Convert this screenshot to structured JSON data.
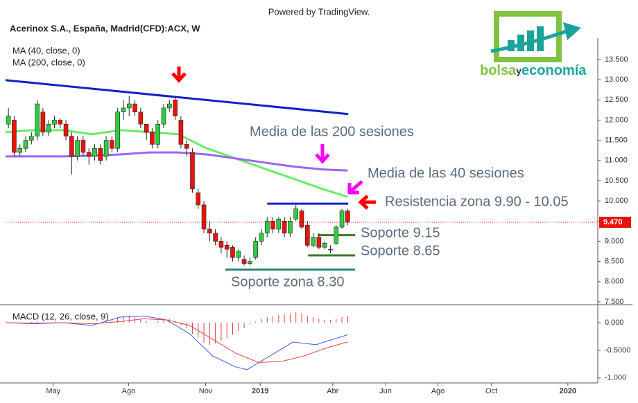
{
  "chart_data": {
    "type": "candlestick",
    "watermark": "Powered by TradingView.",
    "title": "Acerinox S.A., España, Madrid(CFD):ACX, W",
    "indicator_labels": [
      "MA (40, close, 0)",
      "MA (200, close, 0)"
    ],
    "logo": {
      "part1": "bolsa",
      "part2": "y",
      "part3": "economía"
    },
    "xlim": [
      0,
      103
    ],
    "xticks": [
      {
        "value": 8.3,
        "label": "May"
      },
      {
        "value": 21.4,
        "label": "Ago"
      },
      {
        "value": 34.8,
        "label": "Nov"
      },
      {
        "value": 44.3,
        "label": "2019"
      },
      {
        "value": 56.9,
        "label": "Abr"
      },
      {
        "value": 66.1,
        "label": "Jun"
      },
      {
        "value": 75.2,
        "label": "Ago"
      },
      {
        "value": 84.5,
        "label": "Oct"
      },
      {
        "value": 97.8,
        "label": "2020"
      }
    ],
    "ylim": [
      7.43,
      14.03
    ],
    "yticks": [
      {
        "value": 7.5,
        "label": "7.500"
      },
      {
        "value": 8,
        "label": "8.000"
      },
      {
        "value": 8.5,
        "label": "8.500"
      },
      {
        "value": 9,
        "label": "9.000"
      },
      {
        "value": 9.5,
        "label": "9.500"
      },
      {
        "value": 10,
        "label": "10.000"
      },
      {
        "value": 10.5,
        "label": "10.500"
      },
      {
        "value": 11,
        "label": "11.000"
      },
      {
        "value": 11.5,
        "label": "11.500"
      },
      {
        "value": 12,
        "label": "12.000"
      },
      {
        "value": 12.5,
        "label": "12.500"
      },
      {
        "value": 13,
        "label": "13.000"
      },
      {
        "value": 13.5,
        "label": "13.500"
      }
    ],
    "up_color": "#2ecc40",
    "down_color": "#e8140c",
    "x": [
      0.5,
      1.5,
      2.5,
      3.5,
      4.5,
      5.5,
      6.5,
      7.5,
      8.5,
      9.5,
      10.5,
      11.5,
      12.5,
      13.5,
      14.5,
      15.5,
      16.5,
      17.5,
      18.5,
      19.5,
      20.5,
      21.5,
      22.5,
      23.5,
      24.5,
      25.5,
      26.5,
      27.5,
      28.5,
      29.5,
      30.5,
      31.5,
      32.5,
      33.5,
      34.5,
      35.5,
      36.5,
      37.5,
      38.5,
      39.5,
      40.5,
      41.5,
      42.5,
      43.5,
      44.5,
      45.5,
      46.5,
      47.5,
      48.5,
      49.5,
      50.5,
      51.5,
      52.5,
      53.5,
      54.5,
      55.5,
      56.5,
      57.5,
      58.5,
      59.5
    ],
    "open": [
      11.9,
      12.0,
      11.2,
      11.3,
      11.5,
      11.6,
      12.2,
      11.7,
      11.9,
      12.0,
      11.9,
      11.6,
      11.1,
      11.5,
      11.2,
      11.1,
      11.3,
      11.1,
      11.5,
      11.3,
      12.2,
      12.3,
      12.4,
      12.2,
      11.9,
      11.7,
      11.4,
      11.9,
      12.3,
      12.5,
      12.0,
      11.4,
      11.2,
      10.2,
      9.9,
      9.3,
      9.2,
      9.0,
      8.9,
      8.85,
      8.6,
      8.55,
      8.45,
      8.6,
      9.0,
      9.2,
      9.5,
      9.3,
      9.5,
      9.2,
      9.55,
      9.75,
      9.4,
      8.9,
      9.1,
      8.85,
      8.8,
      8.95,
      9.35,
      9.75
    ],
    "high": [
      12.3,
      12.1,
      11.4,
      11.6,
      11.7,
      12.5,
      12.3,
      12.0,
      12.1,
      12.05,
      12.0,
      11.7,
      11.6,
      11.6,
      11.3,
      11.4,
      11.4,
      11.6,
      11.6,
      12.3,
      12.5,
      12.6,
      12.5,
      12.3,
      11.9,
      11.8,
      12.0,
      12.4,
      12.5,
      12.6,
      12.1,
      11.5,
      11.3,
      10.3,
      10.0,
      9.5,
      9.3,
      9.1,
      9.0,
      8.9,
      8.8,
      8.65,
      8.6,
      9.1,
      9.3,
      9.6,
      9.6,
      9.6,
      9.6,
      9.6,
      9.9,
      9.8,
      9.5,
      9.2,
      9.2,
      9.0,
      8.9,
      9.4,
      9.8,
      9.8
    ],
    "low": [
      11.8,
      11.1,
      11.1,
      11.2,
      11.4,
      11.5,
      11.6,
      11.6,
      11.8,
      11.8,
      11.5,
      10.65,
      11.0,
      11.1,
      10.9,
      11.0,
      10.9,
      11.0,
      11.2,
      11.2,
      12.0,
      12.1,
      12.1,
      11.8,
      11.5,
      11.3,
      11.3,
      11.8,
      12.2,
      12.0,
      11.3,
      11.1,
      10.2,
      9.8,
      9.2,
      9.0,
      8.9,
      8.7,
      8.6,
      8.5,
      8.5,
      8.4,
      8.4,
      8.55,
      8.9,
      9.1,
      9.2,
      9.2,
      9.1,
      9.1,
      9.5,
      9.3,
      8.85,
      8.85,
      8.8,
      8.8,
      8.7,
      8.9,
      9.3,
      9.4
    ],
    "close": [
      12.1,
      11.2,
      11.3,
      11.5,
      11.6,
      12.4,
      11.7,
      11.9,
      12.0,
      11.9,
      11.6,
      11.1,
      11.5,
      11.2,
      11.1,
      11.3,
      11.0,
      11.5,
      11.3,
      12.2,
      12.3,
      12.4,
      12.2,
      11.9,
      11.7,
      11.4,
      11.9,
      12.3,
      12.4,
      12.1,
      11.4,
      11.3,
      10.3,
      9.9,
      9.3,
      9.2,
      9.0,
      8.85,
      8.8,
      8.6,
      8.75,
      8.45,
      8.5,
      9.0,
      9.2,
      9.5,
      9.3,
      9.55,
      9.2,
      9.5,
      9.8,
      9.35,
      8.9,
      9.1,
      8.85,
      8.95,
      8.8,
      9.35,
      9.75,
      9.47
    ],
    "lines": [
      {
        "name": "MA 40",
        "color": "#66ee66",
        "x": [
          0,
          5,
          10,
          15,
          20,
          25,
          30,
          35,
          40,
          45,
          50,
          55,
          59.5
        ],
        "values": [
          11.7,
          11.75,
          11.75,
          11.65,
          11.75,
          11.7,
          11.65,
          11.3,
          11.05,
          10.8,
          10.55,
          10.3,
          10.1
        ]
      },
      {
        "name": "MA 200",
        "color": "#9966ee",
        "x": [
          0,
          5,
          10,
          15,
          20,
          25,
          30,
          35,
          40,
          45,
          50,
          55,
          59.5
        ],
        "values": [
          11.1,
          11.1,
          11.1,
          11.12,
          11.15,
          11.2,
          11.2,
          11.15,
          11.05,
          10.95,
          10.85,
          10.78,
          10.75
        ]
      },
      {
        "name": "trend",
        "color": "#1020cc",
        "x": [
          0,
          59.6
        ],
        "values": [
          12.99,
          12.15
        ]
      }
    ],
    "levels": [
      {
        "value": 9.93,
        "x": [
          45.5,
          59.6
        ],
        "color": "#1020cc"
      },
      {
        "value": 9.15,
        "x": [
          54.3,
          60.8
        ],
        "color": "#3a7a2a"
      },
      {
        "value": 8.65,
        "x": [
          52.6,
          60.8
        ],
        "color": "#3a7a2a"
      },
      {
        "value": 8.3,
        "x": [
          38.2,
          60.8
        ],
        "color": "#2a8a70"
      }
    ],
    "last_price": {
      "value": 9.47,
      "label": "9.470",
      "color": "#e8140c"
    },
    "annotations": [
      "Media de las 200 sesiones",
      "Media de las 40 sesiones",
      "Resistencia zona 9.90 - 10.05",
      "Soporte 9.15",
      "Soporte 8.65",
      "Soporte zona 8.30"
    ],
    "macd": {
      "label": "MACD (12, 26, close, 9)",
      "ylim": [
        -1.09,
        0.3
      ],
      "yticks": [
        {
          "value": 0,
          "label": "0.000"
        },
        {
          "value": -0.5,
          "label": "-0.5000"
        },
        {
          "value": -1,
          "label": "-1.000"
        }
      ],
      "hist_color": "#e04040",
      "histogram": [
        0.0,
        0.01,
        -0.01,
        0.0,
        0.01,
        0.02,
        0.0,
        0.0,
        0.01,
        0.0,
        -0.01,
        -0.02,
        -0.01,
        0.0,
        -0.01,
        -0.01,
        0.0,
        0.02,
        0.04,
        0.1,
        0.12,
        0.13,
        0.1,
        0.07,
        0.03,
        0.0,
        0.03,
        0.06,
        0.07,
        0.04,
        -0.05,
        -0.1,
        -0.2,
        -0.28,
        -0.36,
        -0.4,
        -0.38,
        -0.33,
        -0.28,
        -0.22,
        -0.15,
        -0.1,
        -0.03,
        0.02,
        0.07,
        0.1,
        0.12,
        0.14,
        0.15,
        0.16,
        0.19,
        0.17,
        0.12,
        0.1,
        0.07,
        0.05,
        0.05,
        0.07,
        0.1,
        0.12
      ],
      "lines": [
        {
          "name": "MACD",
          "color": "#4455ee",
          "x": [
            0,
            5,
            10,
            15,
            20,
            24,
            28,
            32,
            36,
            40,
            42,
            46,
            50,
            54,
            57,
            59.5
          ],
          "values": [
            0.0,
            -0.02,
            0.0,
            -0.05,
            0.1,
            0.12,
            0.05,
            -0.2,
            -0.6,
            -0.8,
            -0.85,
            -0.6,
            -0.35,
            -0.4,
            -0.3,
            -0.22
          ]
        },
        {
          "name": "Signal",
          "color": "#ee4444",
          "x": [
            0,
            5,
            10,
            15,
            20,
            24,
            28,
            32,
            36,
            40,
            44,
            48,
            52,
            56,
            59.5
          ],
          "values": [
            0.0,
            -0.01,
            0.0,
            -0.02,
            0.02,
            0.07,
            0.05,
            -0.05,
            -0.3,
            -0.55,
            -0.72,
            -0.7,
            -0.6,
            -0.45,
            -0.35
          ]
        }
      ]
    }
  }
}
